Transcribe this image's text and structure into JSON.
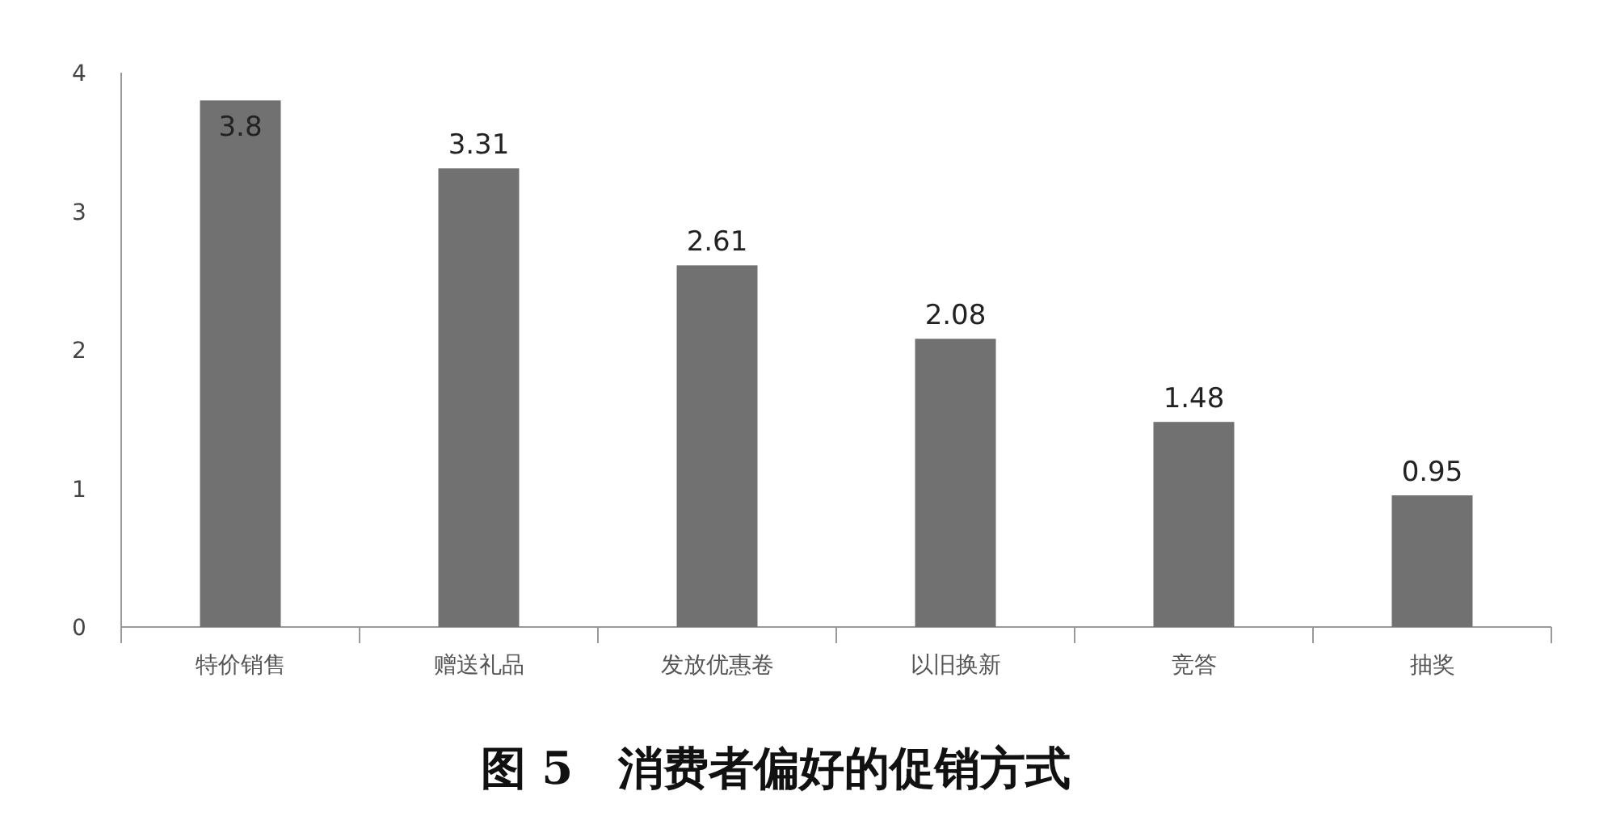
{
  "chart_data": {
    "type": "bar",
    "title": "图 5　消费者偏好的促销方式",
    "categories": [
      "特价销售",
      "赠送礼品",
      "发放优惠卷",
      "以旧换新",
      "竞答",
      "抽奖"
    ],
    "values": [
      3.8,
      3.31,
      2.61,
      2.08,
      1.48,
      0.95
    ],
    "color": "#717171",
    "ylim": [
      0,
      4
    ],
    "yticks": [
      0,
      1,
      2,
      3,
      4
    ],
    "grid": false,
    "data_labels": true
  }
}
